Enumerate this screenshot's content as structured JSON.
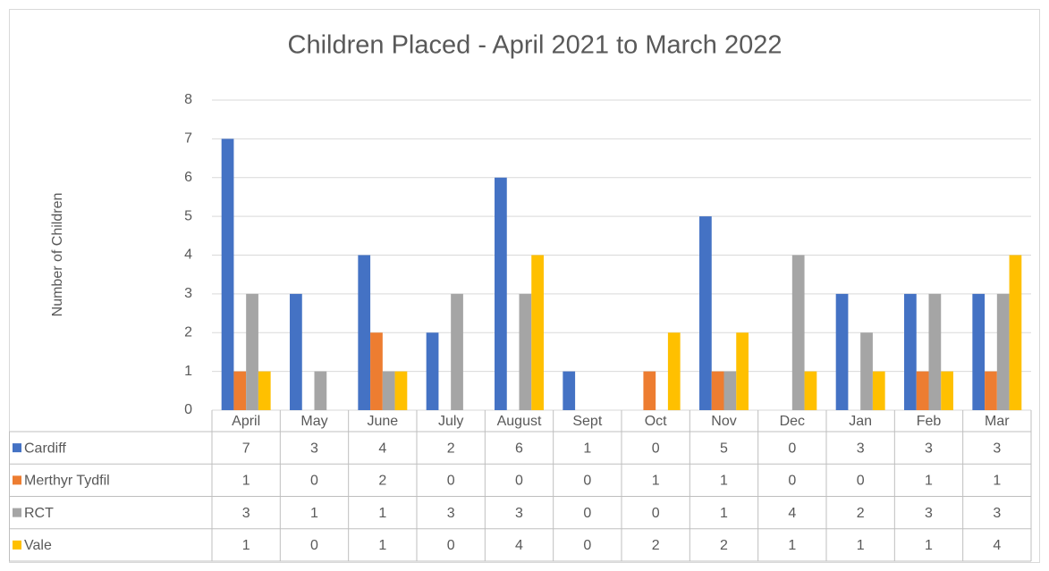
{
  "chart_data": {
    "type": "bar",
    "title": "Children Placed - April 2021 to March 2022",
    "y_label": "Number of Children",
    "categories": [
      "April",
      "May",
      "June",
      "July",
      "August",
      "Sept",
      "Oct",
      "Nov",
      "Dec",
      "Jan",
      "Feb",
      "Mar"
    ],
    "series": [
      {
        "name": "Cardiff",
        "color": "#4472c4",
        "values": [
          7,
          3,
          4,
          2,
          6,
          1,
          0,
          5,
          0,
          3,
          3,
          3
        ]
      },
      {
        "name": "Merthyr Tydfil",
        "color": "#ed7d31",
        "values": [
          1,
          0,
          2,
          0,
          0,
          0,
          1,
          1,
          0,
          0,
          1,
          1
        ]
      },
      {
        "name": "RCT",
        "color": "#a5a5a5",
        "values": [
          3,
          1,
          1,
          3,
          3,
          0,
          0,
          1,
          4,
          2,
          3,
          3
        ]
      },
      {
        "name": "Vale",
        "color": "#ffc000",
        "values": [
          1,
          0,
          1,
          0,
          4,
          0,
          2,
          2,
          1,
          1,
          1,
          4
        ]
      }
    ],
    "ylim": [
      0,
      8
    ],
    "yticks": [
      0,
      1,
      2,
      3,
      4,
      5,
      6,
      7,
      8
    ],
    "grid": true,
    "legend": "table"
  }
}
